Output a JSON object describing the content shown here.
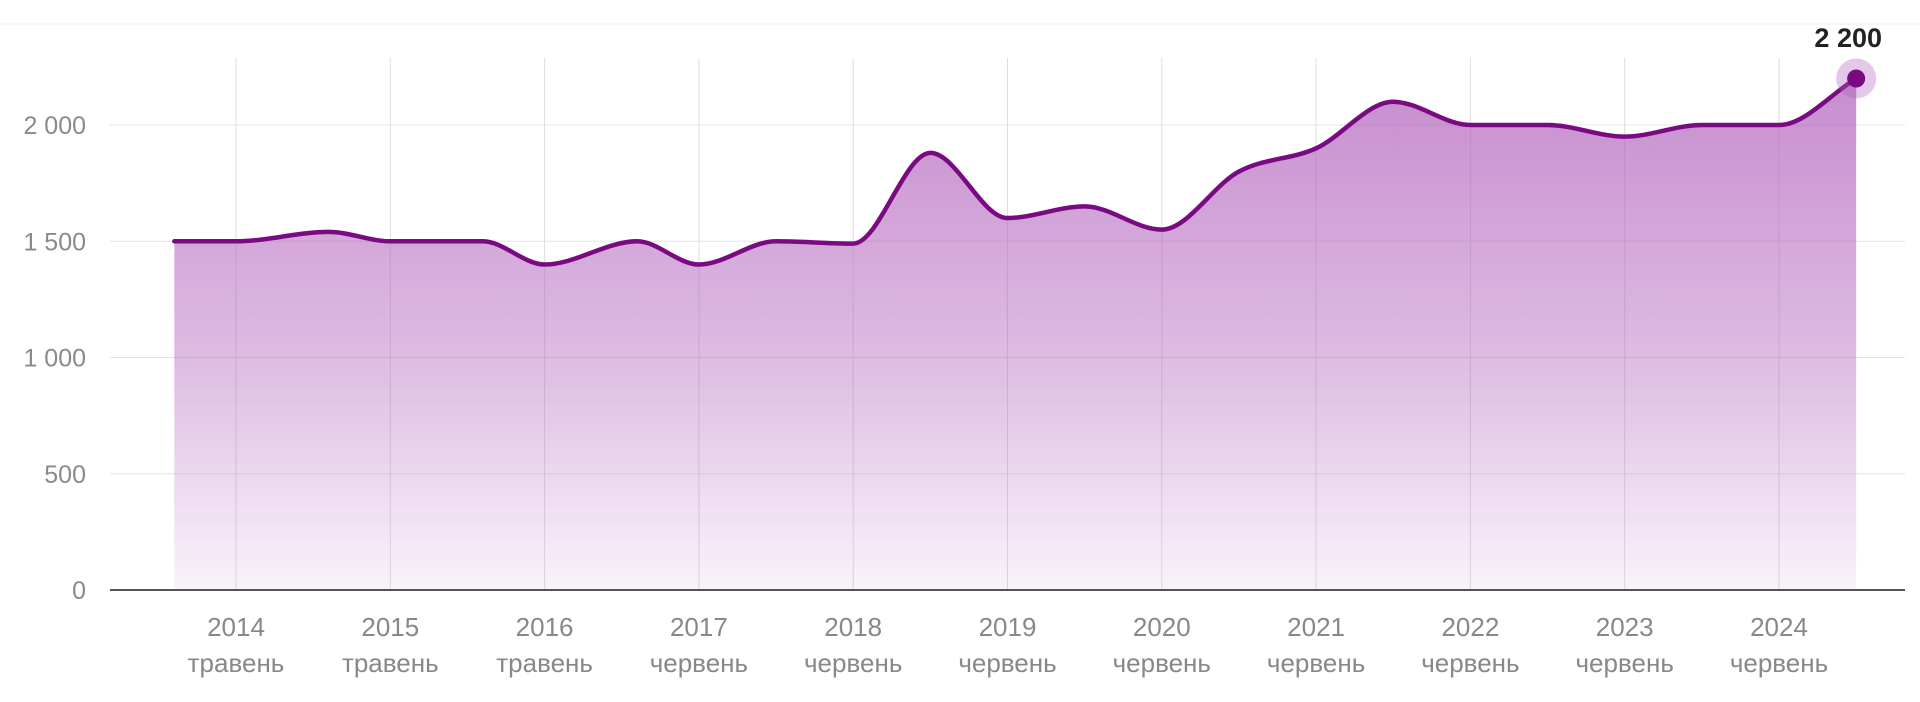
{
  "chart_data": {
    "type": "area",
    "title": "",
    "xlabel": "",
    "ylabel": "",
    "ylim": [
      0,
      2200
    ],
    "y_ticks": [
      {
        "value": 0,
        "label": "0"
      },
      {
        "value": 500,
        "label": "500"
      },
      {
        "value": 1000,
        "label": "1 000"
      },
      {
        "value": 1500,
        "label": "1 500"
      },
      {
        "value": 2000,
        "label": "2 000"
      }
    ],
    "x_ticks": [
      {
        "year": "2014",
        "month": "травень"
      },
      {
        "year": "2015",
        "month": "травень"
      },
      {
        "year": "2016",
        "month": "травень"
      },
      {
        "year": "2017",
        "month": "червень"
      },
      {
        "year": "2018",
        "month": "червень"
      },
      {
        "year": "2019",
        "month": "червень"
      },
      {
        "year": "2020",
        "month": "червень"
      },
      {
        "year": "2021",
        "month": "червень"
      },
      {
        "year": "2022",
        "month": "червень"
      },
      {
        "year": "2023",
        "month": "червень"
      },
      {
        "year": "2024",
        "month": "червень"
      }
    ],
    "series": [
      {
        "color": "#7a0a82",
        "points": [
          {
            "x": 2013.6,
            "y": 1500
          },
          {
            "x": 2014.0,
            "y": 1500
          },
          {
            "x": 2014.6,
            "y": 1540
          },
          {
            "x": 2015.0,
            "y": 1500
          },
          {
            "x": 2015.6,
            "y": 1500
          },
          {
            "x": 2016.0,
            "y": 1400
          },
          {
            "x": 2016.6,
            "y": 1500
          },
          {
            "x": 2017.0,
            "y": 1400
          },
          {
            "x": 2017.5,
            "y": 1500
          },
          {
            "x": 2018.0,
            "y": 1490
          },
          {
            "x": 2018.5,
            "y": 1880
          },
          {
            "x": 2019.0,
            "y": 1600
          },
          {
            "x": 2019.5,
            "y": 1650
          },
          {
            "x": 2020.0,
            "y": 1550
          },
          {
            "x": 2020.5,
            "y": 1800
          },
          {
            "x": 2021.0,
            "y": 1900
          },
          {
            "x": 2021.5,
            "y": 2100
          },
          {
            "x": 2022.0,
            "y": 2000
          },
          {
            "x": 2022.5,
            "y": 2000
          },
          {
            "x": 2023.0,
            "y": 1950
          },
          {
            "x": 2023.5,
            "y": 2000
          },
          {
            "x": 2024.0,
            "y": 2000
          },
          {
            "x": 2024.5,
            "y": 2200
          }
        ]
      }
    ],
    "end_label": "2 200",
    "grid": true,
    "legend": "none"
  }
}
